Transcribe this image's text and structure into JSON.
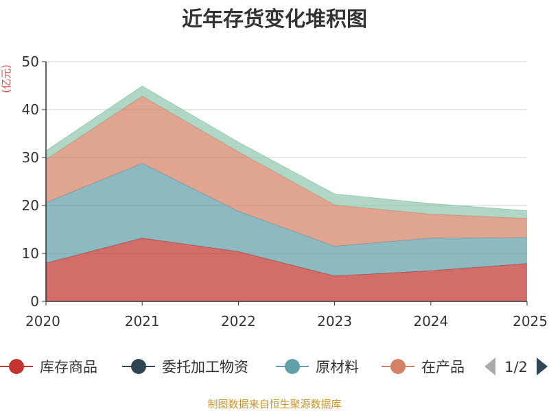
{
  "chart_data": {
    "type": "area",
    "stacked": true,
    "title": "近年存货变化堆积图",
    "unit": "(亿元)",
    "x": [
      "2020",
      "2021",
      "2022",
      "2023",
      "2024",
      "2025"
    ],
    "ylim": [
      0,
      50
    ],
    "yticks": [
      "0",
      "10",
      "20",
      "30",
      "40",
      "50"
    ],
    "grid": true,
    "series": [
      {
        "name": "库存商品",
        "color": "#c23531",
        "values": [
          8.0,
          13.2,
          10.4,
          5.3,
          6.4,
          7.9
        ]
      },
      {
        "name": "委托加工物资",
        "color": "#2f4554",
        "values": [
          0.0,
          0.0,
          0.0,
          0.0,
          0.0,
          0.0
        ]
      },
      {
        "name": "原材料",
        "color": "#61a0a8",
        "values": [
          12.6,
          15.6,
          8.4,
          6.2,
          6.8,
          5.4
        ]
      },
      {
        "name": "在产品",
        "color": "#d48265",
        "values": [
          9.0,
          14.0,
          12.4,
          8.6,
          5.0,
          4.0
        ]
      },
      {
        "name": "",
        "color": "#91c7ae",
        "values": [
          1.8,
          2.1,
          2.0,
          2.3,
          2.2,
          1.6
        ]
      }
    ],
    "legend": {
      "position": "bottom",
      "items": [
        "库存商品",
        "委托加工物资",
        "原材料",
        "在产品"
      ],
      "page": "1/2"
    }
  },
  "footer": {
    "source": "制图数据来自恒生聚源数据库"
  }
}
